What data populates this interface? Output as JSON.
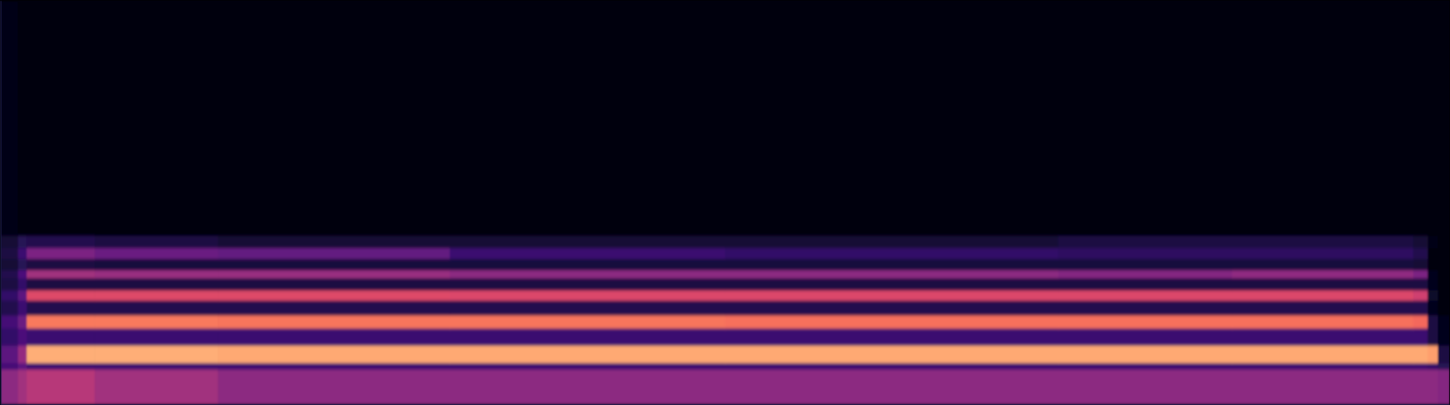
{
  "chart_data": {
    "type": "heatmap",
    "tick_labels": false,
    "color": "magma",
    "xlim": [
      0,
      1
    ],
    "ylim": [
      0,
      1
    ],
    "zlim": [
      0,
      1
    ],
    "x_edges": [
      0,
      0.012,
      0.018,
      0.065,
      0.15,
      0.31,
      0.5,
      0.73,
      0.85,
      0.975,
      0.985,
      0.992,
      1
    ],
    "y_edges": [
      0,
      0.087,
      0.103,
      0.146,
      0.189,
      0.221,
      0.258,
      0.283,
      0.313,
      0.333,
      0.361,
      0.388,
      0.418,
      1
    ],
    "values": [
      [
        0.4,
        0.45,
        0.5,
        0.45,
        0.4,
        0.4,
        0.4,
        0.4,
        0.4,
        0.4,
        0.4,
        0.38
      ],
      [
        0.22,
        0.28,
        0.2,
        0.2,
        0.2,
        0.2,
        0.2,
        0.2,
        0.2,
        0.2,
        0.18,
        0.15
      ],
      [
        0.28,
        0.42,
        0.83,
        0.83,
        0.82,
        0.82,
        0.82,
        0.82,
        0.82,
        0.82,
        0.8,
        0.12
      ],
      [
        0.18,
        0.24,
        0.2,
        0.2,
        0.2,
        0.2,
        0.2,
        0.2,
        0.2,
        0.2,
        0.12,
        0.05
      ],
      [
        0.22,
        0.32,
        0.72,
        0.72,
        0.71,
        0.71,
        0.7,
        0.7,
        0.7,
        0.68,
        0.12,
        0.05
      ],
      [
        0.14,
        0.2,
        0.14,
        0.14,
        0.14,
        0.14,
        0.14,
        0.14,
        0.14,
        0.14,
        0.05,
        0.03
      ],
      [
        0.18,
        0.28,
        0.6,
        0.6,
        0.6,
        0.59,
        0.59,
        0.59,
        0.59,
        0.56,
        0.08,
        0.03
      ],
      [
        0.12,
        0.18,
        0.12,
        0.12,
        0.12,
        0.12,
        0.12,
        0.12,
        0.12,
        0.12,
        0.05,
        0.03
      ],
      [
        0.14,
        0.24,
        0.45,
        0.43,
        0.43,
        0.4,
        0.4,
        0.38,
        0.41,
        0.36,
        0.05,
        0.02
      ],
      [
        0.1,
        0.15,
        0.12,
        0.11,
        0.11,
        0.11,
        0.11,
        0.11,
        0.11,
        0.1,
        0.03,
        0.02
      ],
      [
        0.12,
        0.2,
        0.36,
        0.32,
        0.3,
        0.2,
        0.18,
        0.17,
        0.17,
        0.14,
        0.03,
        0.02
      ],
      [
        0.1,
        0.15,
        0.14,
        0.12,
        0.1,
        0.1,
        0.1,
        0.12,
        0.12,
        0.1,
        0.04,
        0.02
      ],
      [
        0.04,
        0.03,
        0.03,
        0.03,
        0.03,
        0.03,
        0.03,
        0.03,
        0.03,
        0.03,
        0.03,
        0.03
      ]
    ]
  }
}
